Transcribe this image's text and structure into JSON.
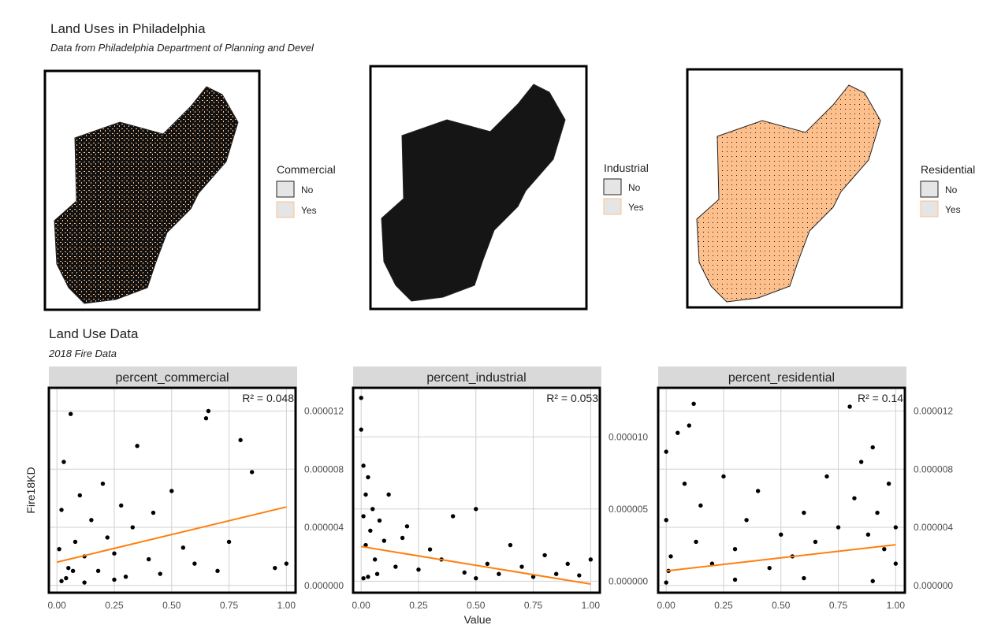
{
  "maps": {
    "title": "Land Uses in Philadelphia",
    "subtitle": "Data from Philadelphia Department of Planning and Devel",
    "panels": [
      {
        "legend_title": "Commercial",
        "legend_items": [
          "No",
          "Yes"
        ]
      },
      {
        "legend_title": "Industrial",
        "legend_items": [
          "No",
          "Yes"
        ]
      },
      {
        "legend_title": "Residential",
        "legend_items": [
          "No",
          "Yes"
        ]
      }
    ]
  },
  "scatter_section": {
    "title": "Land Use Data",
    "subtitle": "2018 Fire Data",
    "x_label": "Value",
    "y_label": "Fire18KD"
  },
  "chart_data": [
    {
      "type": "scatter",
      "title": "percent_commercial",
      "r2_label": "R² = 0.048",
      "xlim": [
        -0.035,
        1.04
      ],
      "ylim": [
        -5e-07,
        1.36e-05
      ],
      "xticks": [
        {
          "value": 0,
          "label": "0.00"
        },
        {
          "value": 0.25,
          "label": "0.25"
        },
        {
          "value": 0.5,
          "label": "0.50"
        },
        {
          "value": 0.75,
          "label": "0.75"
        },
        {
          "value": 1,
          "label": "1.00"
        }
      ],
      "yticks": [
        {
          "value": 0,
          "label": "0.000000"
        },
        {
          "value": 4e-06,
          "label": "0.000004"
        },
        {
          "value": 8e-06,
          "label": "0.000008"
        },
        {
          "value": 1.2e-05,
          "label": "0.000012"
        }
      ],
      "color": "#000000",
      "x": [
        0.01,
        0.02,
        0.03,
        0.05,
        0.06,
        0.08,
        0.1,
        0.12,
        0.15,
        0.18,
        0.2,
        0.22,
        0.25,
        0.28,
        0.3,
        0.33,
        0.35,
        0.4,
        0.42,
        0.45,
        0.5,
        0.55,
        0.6,
        0.65,
        0.66,
        0.7,
        0.75,
        0.8,
        0.85,
        0.95,
        1.0,
        0.02,
        0.04,
        0.07,
        0.12,
        0.25
      ],
      "values": [
        2.5e-06,
        5.2e-06,
        8.5e-06,
        1.2e-06,
        1.18e-05,
        3e-06,
        6.2e-06,
        2e-06,
        4.5e-06,
        1e-06,
        7e-06,
        3.3e-06,
        2.2e-06,
        5.5e-06,
        6e-07,
        4e-06,
        9.6e-06,
        1.8e-06,
        5e-06,
        8e-07,
        6.5e-06,
        2.6e-06,
        1.5e-06,
        1.15e-05,
        1.2e-05,
        1e-06,
        3e-06,
        1e-05,
        7.8e-06,
        1.2e-06,
        1.5e-06,
        3e-07,
        5e-07,
        1e-06,
        2e-07,
        4e-07
      ],
      "trend": {
        "color": "#ff7f0e",
        "x": [
          0,
          1
        ],
        "values": [
          1.6e-06,
          5.4e-06
        ]
      }
    },
    {
      "type": "scatter",
      "title": "percent_industrial",
      "r2_label": "R² = 0.053",
      "xlim": [
        -0.035,
        1.04
      ],
      "ylim": [
        -8e-07,
        1.34e-05
      ],
      "xticks": [
        {
          "value": 0,
          "label": "0.00"
        },
        {
          "value": 0.25,
          "label": "0.25"
        },
        {
          "value": 0.5,
          "label": "0.50"
        },
        {
          "value": 0.75,
          "label": "0.75"
        },
        {
          "value": 1,
          "label": "1.00"
        }
      ],
      "yticks": [
        {
          "value": 0,
          "label": "0.000000"
        },
        {
          "value": 5e-06,
          "label": "0.000005"
        },
        {
          "value": 1e-05,
          "label": "0.000010"
        }
      ],
      "color": "#000000",
      "x": [
        0.0,
        0.0,
        0.01,
        0.01,
        0.02,
        0.02,
        0.03,
        0.04,
        0.05,
        0.06,
        0.08,
        0.1,
        0.12,
        0.15,
        0.18,
        0.2,
        0.25,
        0.3,
        0.35,
        0.4,
        0.45,
        0.5,
        0.55,
        0.6,
        0.65,
        0.7,
        0.75,
        0.8,
        0.85,
        0.9,
        0.95,
        1.0,
        0.01,
        0.03,
        0.07,
        0.5
      ],
      "values": [
        1.27e-05,
        1.05e-05,
        8e-06,
        4.5e-06,
        6e-06,
        2.5e-06,
        7.2e-06,
        3.5e-06,
        5e-06,
        1.5e-06,
        4.2e-06,
        2.8e-06,
        6e-06,
        1e-06,
        3e-06,
        3.8e-06,
        8e-07,
        2.2e-06,
        1.5e-06,
        4.5e-06,
        6e-07,
        5e-06,
        1.2e-06,
        5e-07,
        2.5e-06,
        1e-06,
        3e-07,
        1.8e-06,
        5e-07,
        1.2e-06,
        4e-07,
        1.5e-06,
        2e-07,
        3e-07,
        5e-07,
        2e-07
      ],
      "trend": {
        "color": "#ff7f0e",
        "x": [
          0,
          1
        ],
        "values": [
          2.4e-06,
          -2e-07
        ]
      }
    },
    {
      "type": "scatter",
      "title": "percent_residential",
      "r2_label": "R² = 0.14",
      "xlim": [
        -0.035,
        1.04
      ],
      "ylim": [
        -5e-07,
        1.36e-05
      ],
      "xticks": [
        {
          "value": 0,
          "label": "0.00"
        },
        {
          "value": 0.25,
          "label": "0.25"
        },
        {
          "value": 0.5,
          "label": "0.50"
        },
        {
          "value": 0.75,
          "label": "0.75"
        },
        {
          "value": 1,
          "label": "1.00"
        }
      ],
      "yticks": [
        {
          "value": 0,
          "label": "0.000000"
        },
        {
          "value": 4e-06,
          "label": "0.000004"
        },
        {
          "value": 8e-06,
          "label": "0.000008"
        },
        {
          "value": 1.2e-05,
          "label": "0.000012"
        }
      ],
      "color": "#000000",
      "x": [
        0.0,
        0.0,
        0.01,
        0.02,
        0.05,
        0.08,
        0.1,
        0.12,
        0.13,
        0.15,
        0.2,
        0.25,
        0.3,
        0.35,
        0.4,
        0.45,
        0.5,
        0.55,
        0.6,
        0.65,
        0.7,
        0.75,
        0.8,
        0.82,
        0.85,
        0.88,
        0.9,
        0.92,
        0.95,
        0.97,
        1.0,
        1.0,
        0.0,
        0.3,
        0.6,
        0.9
      ],
      "values": [
        9.2e-06,
        4.5e-06,
        1e-06,
        2e-06,
        1.05e-05,
        7e-06,
        1.1e-05,
        1.25e-05,
        3e-06,
        5.5e-06,
        1.5e-06,
        7.5e-06,
        2.5e-06,
        4.5e-06,
        6.5e-06,
        1.2e-06,
        3.5e-06,
        2e-06,
        5e-06,
        3e-06,
        7.5e-06,
        4e-06,
        1.23e-05,
        6e-06,
        8.5e-06,
        3.5e-06,
        9.5e-06,
        5e-06,
        2.5e-06,
        7e-06,
        4e-06,
        1.5e-06,
        2e-07,
        4e-07,
        5e-07,
        3e-07
      ],
      "trend": {
        "color": "#ff7f0e",
        "x": [
          0,
          1
        ],
        "values": [
          1e-06,
          2.8e-06
        ]
      }
    }
  ]
}
